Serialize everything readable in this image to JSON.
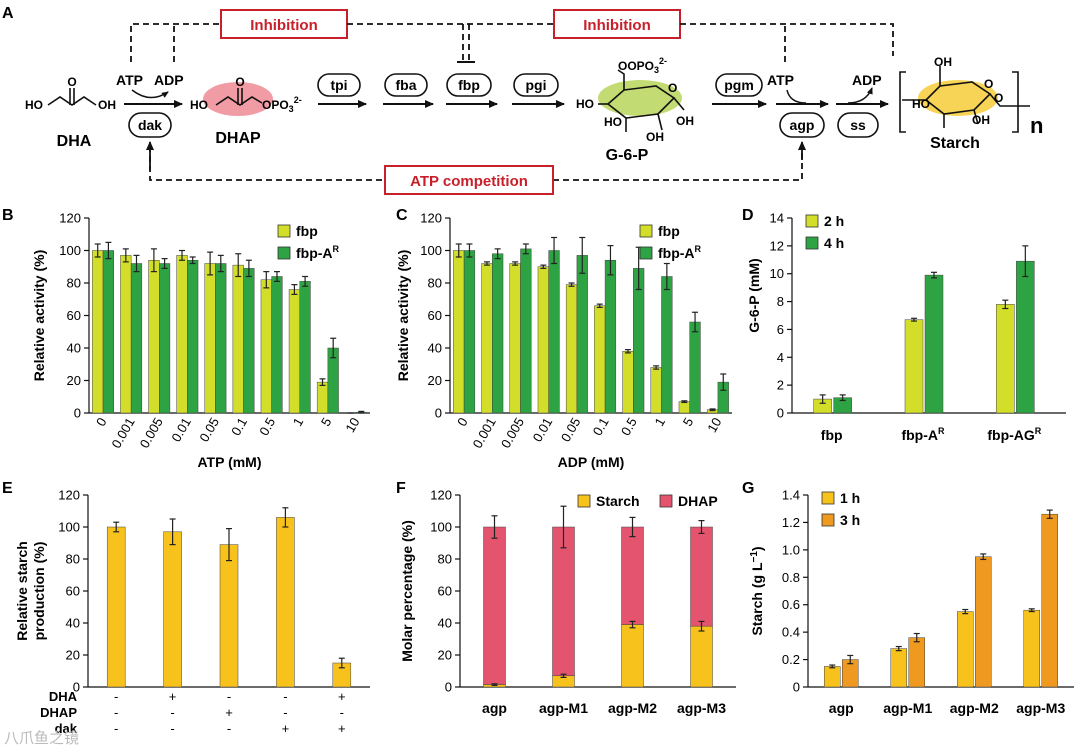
{
  "colors": {
    "fbp": "#d3de2b",
    "fbpA": "#2ea343",
    "starch": "#f8c21d",
    "starch3h": "#ef9920",
    "dhap": "#e4546e",
    "red": "#c8202a",
    "dhapHighlight": "#ef8a95",
    "g6pHighlight": "#b8d55a",
    "starchHighlight": "#f6cf42"
  },
  "pathway": {
    "panel_letter": "A",
    "inhibition_label": "Inhibition",
    "atp_competition_label": "ATP competition",
    "atp1": "ATP",
    "adp1": "ADP",
    "atp2": "ATP",
    "adp2": "ADP",
    "dha_label": "DHA",
    "dhap_label": "DHAP",
    "g6p_label": "G-6-P",
    "starch_label": "Starch",
    "n_label": "n",
    "enzymes": [
      "dak",
      "tpi",
      "fba",
      "fbp",
      "pgi",
      "pgm",
      "agp",
      "ss"
    ],
    "chem": {
      "ho": "HO",
      "oh": "OH",
      "o": "O",
      "opo3": "OPO",
      "sub3": "3",
      "sup2": "2-"
    }
  },
  "watermark": "八爪鱼之镜",
  "chart_data": [
    {
      "panel": "B",
      "type": "bar",
      "xlabel": "ATP (mM)",
      "ylabel": "Relative activity (%)",
      "ylim": [
        0,
        120
      ],
      "yticks": [
        0,
        20,
        40,
        60,
        80,
        100,
        120
      ],
      "categories": [
        "0",
        "0.001",
        "0.005",
        "0.01",
        "0.05",
        "0.1",
        "0.5",
        "1",
        "5",
        "10"
      ],
      "legend": [
        "fbp",
        "fbp-A",
        "R"
      ],
      "legend_position": "top-right",
      "series": [
        {
          "name": "fbp",
          "values": [
            100,
            97,
            94,
            97,
            92,
            91,
            82,
            76,
            19,
            0
          ],
          "errors": [
            4,
            4,
            7,
            3,
            7,
            7,
            5,
            3,
            2,
            0
          ]
        },
        {
          "name": "fbp-A",
          "values": [
            100,
            92,
            92,
            94,
            92,
            89,
            84,
            81,
            40,
            0.5
          ],
          "errors": [
            5,
            5,
            3,
            2,
            5,
            5,
            3,
            3,
            6,
            0.5
          ]
        }
      ]
    },
    {
      "panel": "C",
      "type": "bar",
      "xlabel": "ADP (mM)",
      "ylabel": "Relative activity (%)",
      "ylim": [
        0,
        120
      ],
      "yticks": [
        0,
        20,
        40,
        60,
        80,
        100,
        120
      ],
      "categories": [
        "0",
        "0.001",
        "0.005",
        "0.01",
        "0.05",
        "0.1",
        "0.5",
        "1",
        "5",
        "10"
      ],
      "legend": [
        "fbp",
        "fbp-A",
        "R"
      ],
      "legend_position": "top-right",
      "series": [
        {
          "name": "fbp",
          "values": [
            100,
            92,
            92,
            90,
            79,
            66,
            38,
            28,
            7,
            2
          ],
          "errors": [
            4,
            1,
            1,
            1,
            1,
            1,
            1,
            1,
            0.5,
            0.5
          ]
        },
        {
          "name": "fbp-A",
          "values": [
            100,
            98,
            101,
            100,
            97,
            94,
            89,
            84,
            56,
            19
          ],
          "errors": [
            4,
            3,
            3,
            8,
            11,
            9,
            13,
            8,
            6,
            5
          ]
        }
      ]
    },
    {
      "panel": "D",
      "type": "bar",
      "xlabel": "",
      "ylabel": "G-6-P (mM)",
      "ylim": [
        0,
        14
      ],
      "yticks": [
        0,
        2,
        4,
        6,
        8,
        10,
        12,
        14
      ],
      "categories": [
        "fbp",
        "fbp-A",
        "fbp-AG"
      ],
      "category_sup": [
        "",
        "R",
        "R"
      ],
      "legend": [
        "2 h",
        "4 h"
      ],
      "legend_position": "top-left",
      "series": [
        {
          "name": "2 h",
          "values": [
            1.0,
            6.7,
            7.8
          ],
          "errors": [
            0.3,
            0.1,
            0.3
          ]
        },
        {
          "name": "4 h",
          "values": [
            1.1,
            9.9,
            10.9
          ],
          "errors": [
            0.2,
            0.2,
            1.1
          ]
        }
      ]
    },
    {
      "panel": "E",
      "type": "bar",
      "xlabel": "",
      "ylabel": [
        "Relative starch",
        "production (%)"
      ],
      "ylim": [
        0,
        120
      ],
      "yticks": [
        0,
        20,
        40,
        60,
        80,
        100,
        120
      ],
      "values": [
        100,
        97,
        89,
        106,
        15
      ],
      "errors": [
        3,
        8,
        10,
        6,
        3
      ],
      "condition_rows": [
        {
          "label": "DHA",
          "marks": [
            "-",
            "+",
            "-",
            "-",
            "+"
          ]
        },
        {
          "label": "DHAP",
          "marks": [
            "-",
            "-",
            "+",
            "-",
            "-"
          ]
        },
        {
          "label": "dak",
          "marks": [
            "-",
            "-",
            "-",
            "+",
            "+"
          ]
        }
      ]
    },
    {
      "panel": "F",
      "type": "bar",
      "stacked": true,
      "xlabel": "",
      "ylabel": "Molar percentage (%)",
      "ylim": [
        0,
        120
      ],
      "yticks": [
        0,
        20,
        40,
        60,
        80,
        100,
        120
      ],
      "categories": [
        "agp",
        "agp-M1",
        "agp-M2",
        "agp-M3"
      ],
      "legend": [
        "Starch",
        "DHAP"
      ],
      "legend_position": "top",
      "series": [
        {
          "name": "Starch",
          "values": [
            1.5,
            7,
            39,
            38
          ],
          "errors": [
            0.5,
            1,
            2,
            3
          ]
        },
        {
          "name": "DHAP",
          "values": [
            98.5,
            93,
            61,
            62
          ],
          "errors": [
            7,
            13,
            6,
            4
          ]
        }
      ]
    },
    {
      "panel": "G",
      "type": "bar",
      "xlabel": "",
      "ylabel": "Starch (g L",
      "ylabel_sup": "−1",
      "ylabel_end": ")",
      "ylim": [
        0,
        1.4
      ],
      "yticks": [
        "0",
        "0.2",
        "0.4",
        "0.6",
        "0.8",
        "1.0",
        "1.2",
        "1.4"
      ],
      "categories": [
        "agp",
        "agp-M1",
        "agp-M2",
        "agp-M3"
      ],
      "legend": [
        "1 h",
        "3 h"
      ],
      "legend_position": "top-left",
      "series": [
        {
          "name": "1 h",
          "values": [
            0.15,
            0.28,
            0.55,
            0.56
          ],
          "errors": [
            0.01,
            0.015,
            0.015,
            0.01
          ]
        },
        {
          "name": "3 h",
          "values": [
            0.2,
            0.36,
            0.95,
            1.26
          ],
          "errors": [
            0.03,
            0.03,
            0.02,
            0.03
          ]
        }
      ]
    }
  ]
}
